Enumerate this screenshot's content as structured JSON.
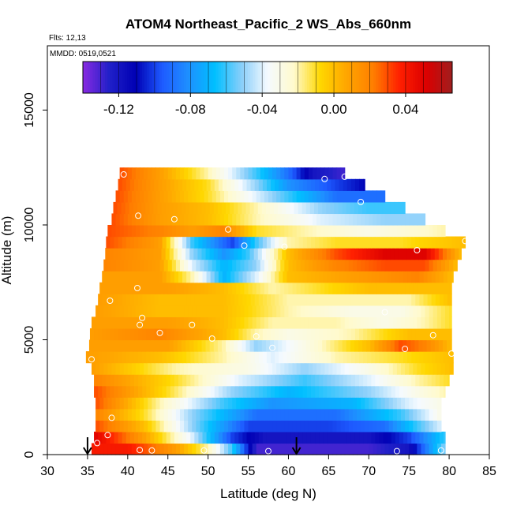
{
  "chart_data": {
    "type": "heatmap",
    "title": "ATOM4 Northeast_Pacific_2 WS_Abs_660nm",
    "flights_label": "Flts: 12,13",
    "dates_label": "MMDD: 0519,0521",
    "xlabel": "Latitude (deg N)",
    "ylabel": "Altitude (m)",
    "xlim": [
      30,
      85
    ],
    "ylim": [
      0,
      17800
    ],
    "x_ticks": [
      30,
      35,
      40,
      45,
      50,
      55,
      60,
      65,
      70,
      75,
      80,
      85
    ],
    "y_ticks": [
      0,
      5000,
      10000,
      15000
    ],
    "colorbar": {
      "range": [
        -0.14,
        0.066
      ],
      "ticks": [
        -0.12,
        -0.08,
        -0.04,
        0.0,
        0.04
      ],
      "tick_labels": [
        "-0.12",
        "-0.08",
        "-0.04",
        "0.00",
        "0.04"
      ],
      "colors": [
        "#8a2be2",
        "#2020c8",
        "#0000b4",
        "#1e5aff",
        "#1e90ff",
        "#00bfff",
        "#87cefa",
        "#f5faff",
        "#fffacd",
        "#ffd700",
        "#ffa500",
        "#ff7f00",
        "#ff2000",
        "#dc0000",
        "#a01e1e"
      ]
    },
    "altitude_bins": [
      {
        "alt": 250,
        "lat_min": 35.5,
        "lat_max": 79.5,
        "values": [
          [
            35.5,
            0.04
          ],
          [
            40,
            0.04
          ],
          [
            46,
            0.01
          ],
          [
            50,
            -0.02
          ],
          [
            53,
            -0.06
          ],
          [
            56,
            -0.13
          ],
          [
            70,
            -0.13
          ],
          [
            75,
            -0.12
          ],
          [
            79.5,
            -0.05
          ]
        ]
      },
      {
        "alt": 750,
        "lat_min": 35.8,
        "lat_max": 79.5,
        "values": [
          [
            35.8,
            0.05
          ],
          [
            42,
            0.01
          ],
          [
            48,
            -0.04
          ],
          [
            53,
            -0.1
          ],
          [
            57,
            -0.12
          ],
          [
            70,
            -0.12
          ],
          [
            75,
            -0.1
          ],
          [
            79.5,
            -0.06
          ]
        ]
      },
      {
        "alt": 1250,
        "lat_min": 36,
        "lat_max": 79,
        "values": [
          [
            36,
            0.03
          ],
          [
            42,
            0.0
          ],
          [
            48,
            -0.05
          ],
          [
            55,
            -0.1
          ],
          [
            65,
            -0.1
          ],
          [
            72,
            -0.09
          ],
          [
            76,
            -0.06
          ],
          [
            79,
            -0.04
          ]
        ]
      },
      {
        "alt": 1750,
        "lat_min": 36,
        "lat_max": 79,
        "values": [
          [
            36,
            0.02
          ],
          [
            42,
            -0.01
          ],
          [
            48,
            -0.05
          ],
          [
            56,
            -0.09
          ],
          [
            66,
            -0.09
          ],
          [
            74,
            -0.06
          ],
          [
            79,
            -0.03
          ]
        ]
      },
      {
        "alt": 2250,
        "lat_min": 36,
        "lat_max": 79,
        "values": [
          [
            36,
            0.03
          ],
          [
            44,
            -0.02
          ],
          [
            52,
            -0.06
          ],
          [
            58,
            -0.08
          ],
          [
            68,
            -0.07
          ],
          [
            75,
            -0.04
          ],
          [
            79,
            -0.03
          ]
        ]
      },
      {
        "alt": 2750,
        "lat_min": 35.8,
        "lat_max": 79.5,
        "values": [
          [
            35.8,
            0.03
          ],
          [
            45,
            -0.01
          ],
          [
            53,
            -0.05
          ],
          [
            60,
            -0.07
          ],
          [
            70,
            -0.05
          ],
          [
            76,
            -0.03
          ],
          [
            79.5,
            -0.02
          ]
        ]
      },
      {
        "alt": 3250,
        "lat_min": 35.8,
        "lat_max": 80,
        "values": [
          [
            35.8,
            0.02
          ],
          [
            46,
            -0.01
          ],
          [
            54,
            -0.04
          ],
          [
            62,
            -0.06
          ],
          [
            70,
            -0.04
          ],
          [
            76,
            -0.02
          ],
          [
            80,
            -0.01
          ]
        ]
      },
      {
        "alt": 3750,
        "lat_min": 35.5,
        "lat_max": 80.5,
        "values": [
          [
            35.5,
            0.01
          ],
          [
            46,
            -0.02
          ],
          [
            55,
            -0.03
          ],
          [
            62,
            -0.05
          ],
          [
            70,
            -0.03
          ],
          [
            76,
            -0.01
          ],
          [
            80.5,
            0.0
          ]
        ]
      },
      {
        "alt": 4250,
        "lat_min": 34.8,
        "lat_max": 80.5,
        "values": [
          [
            34.8,
            0.01
          ],
          [
            44,
            0.0
          ],
          [
            52,
            -0.02
          ],
          [
            58,
            -0.04
          ],
          [
            66,
            -0.02
          ],
          [
            74,
            -0.01
          ],
          [
            80.5,
            0.0
          ]
        ]
      },
      {
        "alt": 4750,
        "lat_min": 35.2,
        "lat_max": 80.3,
        "values": [
          [
            35.2,
            0.01
          ],
          [
            45,
            0.01
          ],
          [
            52,
            -0.02
          ],
          [
            56,
            -0.05
          ],
          [
            62,
            -0.03
          ],
          [
            70,
            0.0
          ],
          [
            74,
            0.03
          ],
          [
            77,
            0.02
          ],
          [
            80.3,
            0.0
          ]
        ]
      },
      {
        "alt": 5250,
        "lat_min": 35.3,
        "lat_max": 80.3,
        "values": [
          [
            35.3,
            0.01
          ],
          [
            44,
            0.02
          ],
          [
            52,
            0.0
          ],
          [
            56,
            -0.02
          ],
          [
            60,
            -0.03
          ],
          [
            68,
            -0.02
          ],
          [
            75,
            0.0
          ],
          [
            80.3,
            0.0
          ]
        ]
      },
      {
        "alt": 5750,
        "lat_min": 35.5,
        "lat_max": 80.3,
        "values": [
          [
            35.5,
            0.01
          ],
          [
            45,
            0.01
          ],
          [
            52,
            0.0
          ],
          [
            58,
            -0.02
          ],
          [
            66,
            -0.02
          ],
          [
            72,
            -0.03
          ],
          [
            77,
            -0.02
          ],
          [
            80.3,
            -0.01
          ]
        ]
      },
      {
        "alt": 6250,
        "lat_min": 36,
        "lat_max": 80.3,
        "values": [
          [
            36,
            0.01
          ],
          [
            44,
            0.0
          ],
          [
            52,
            0.0
          ],
          [
            60,
            -0.02
          ],
          [
            68,
            -0.03
          ],
          [
            74,
            -0.03
          ],
          [
            80.3,
            -0.01
          ]
        ]
      },
      {
        "alt": 6750,
        "lat_min": 36.3,
        "lat_max": 80.3,
        "values": [
          [
            36.3,
            0.01
          ],
          [
            44,
            0.0
          ],
          [
            52,
            0.0
          ],
          [
            60,
            -0.02
          ],
          [
            68,
            -0.02
          ],
          [
            75,
            -0.02
          ],
          [
            80.3,
            0.0
          ]
        ]
      },
      {
        "alt": 7250,
        "lat_min": 36.5,
        "lat_max": 80.3,
        "values": [
          [
            36.5,
            0.01
          ],
          [
            45,
            0.01
          ],
          [
            52,
            0.0
          ],
          [
            58,
            -0.02
          ],
          [
            64,
            -0.01
          ],
          [
            70,
            0.0
          ],
          [
            76,
            0.0
          ],
          [
            80.3,
            0.0
          ]
        ]
      },
      {
        "alt": 7750,
        "lat_min": 36.8,
        "lat_max": 80.5,
        "values": [
          [
            36.8,
            0.01
          ],
          [
            44,
            0.01
          ],
          [
            48,
            -0.02
          ],
          [
            52,
            -0.07
          ],
          [
            56,
            -0.04
          ],
          [
            60,
            0.0
          ],
          [
            68,
            0.01
          ],
          [
            76,
            0.02
          ],
          [
            80.5,
            0.0
          ]
        ]
      },
      {
        "alt": 8250,
        "lat_min": 37,
        "lat_max": 81,
        "values": [
          [
            37,
            0.02
          ],
          [
            44,
            0.01
          ],
          [
            48,
            -0.04
          ],
          [
            52,
            -0.07
          ],
          [
            56,
            -0.05
          ],
          [
            60,
            0.0
          ],
          [
            66,
            0.02
          ],
          [
            72,
            0.03
          ],
          [
            77,
            0.03
          ],
          [
            81,
            0.0
          ]
        ]
      },
      {
        "alt": 8750,
        "lat_min": 37.2,
        "lat_max": 81.5,
        "values": [
          [
            37.2,
            0.02
          ],
          [
            44,
            0.01
          ],
          [
            48,
            -0.05
          ],
          [
            52,
            -0.08
          ],
          [
            55,
            -0.06
          ],
          [
            60,
            0.0
          ],
          [
            66,
            0.03
          ],
          [
            72,
            0.05
          ],
          [
            77,
            0.05
          ],
          [
            81.5,
            0.0
          ]
        ]
      },
      {
        "alt": 9250,
        "lat_min": 37.3,
        "lat_max": 82,
        "values": [
          [
            37.3,
            0.03
          ],
          [
            44,
            0.01
          ],
          [
            48,
            -0.06
          ],
          [
            53,
            -0.1
          ],
          [
            56,
            -0.06
          ],
          [
            60,
            -0.02
          ],
          [
            66,
            -0.01
          ],
          [
            74,
            -0.01
          ],
          [
            82,
            0.0
          ]
        ]
      },
      {
        "alt": 9750,
        "lat_min": 37.5,
        "lat_max": 79.5,
        "values": [
          [
            37.5,
            0.03
          ],
          [
            44,
            0.02
          ],
          [
            48,
            0.01
          ],
          [
            52,
            0.02
          ],
          [
            56,
            -0.01
          ],
          [
            62,
            -0.02
          ],
          [
            70,
            -0.03
          ],
          [
            79.5,
            -0.02
          ]
        ]
      },
      {
        "alt": 10250,
        "lat_min": 38,
        "lat_max": 77,
        "values": [
          [
            38,
            0.03
          ],
          [
            44,
            0.01
          ],
          [
            50,
            0.0
          ],
          [
            56,
            -0.02
          ],
          [
            64,
            -0.04
          ],
          [
            72,
            -0.05
          ],
          [
            77,
            -0.05
          ]
        ]
      },
      {
        "alt": 10750,
        "lat_min": 38.2,
        "lat_max": 74.5,
        "values": [
          [
            38.2,
            0.03
          ],
          [
            44,
            0.01
          ],
          [
            50,
            0.0
          ],
          [
            56,
            -0.02
          ],
          [
            64,
            -0.05
          ],
          [
            70,
            -0.06
          ],
          [
            74.5,
            -0.06
          ]
        ]
      },
      {
        "alt": 11250,
        "lat_min": 38.5,
        "lat_max": 72,
        "values": [
          [
            38.5,
            0.03
          ],
          [
            44,
            0.01
          ],
          [
            50,
            -0.01
          ],
          [
            56,
            -0.04
          ],
          [
            62,
            -0.07
          ],
          [
            66,
            -0.09
          ],
          [
            72,
            -0.09
          ]
        ]
      },
      {
        "alt": 11750,
        "lat_min": 38.8,
        "lat_max": 69.5,
        "values": [
          [
            38.8,
            0.03
          ],
          [
            44,
            0.01
          ],
          [
            50,
            -0.01
          ],
          [
            56,
            -0.05
          ],
          [
            60,
            -0.08
          ],
          [
            66,
            -0.1
          ],
          [
            69.5,
            -0.11
          ]
        ]
      },
      {
        "alt": 12250,
        "lat_min": 39,
        "lat_max": 67,
        "values": [
          [
            39,
            0.03
          ],
          [
            44,
            0.01
          ],
          [
            50,
            -0.02
          ],
          [
            56,
            -0.06
          ],
          [
            60,
            -0.09
          ],
          [
            63,
            -0.12
          ],
          [
            67,
            -0.13
          ]
        ]
      }
    ],
    "sample_points": [
      [
        39.5,
        12200
      ],
      [
        64.5,
        12000
      ],
      [
        67,
        12100
      ],
      [
        69,
        11000
      ],
      [
        41.3,
        10400
      ],
      [
        45.8,
        10250
      ],
      [
        52.5,
        9800
      ],
      [
        54.5,
        9100
      ],
      [
        59.5,
        9050
      ],
      [
        76,
        8900
      ],
      [
        82,
        9300
      ],
      [
        41.2,
        7250
      ],
      [
        37.8,
        6700
      ],
      [
        72,
        6200
      ],
      [
        41.8,
        5950
      ],
      [
        41.5,
        5650
      ],
      [
        48,
        5650
      ],
      [
        44,
        5300
      ],
      [
        50.5,
        5050
      ],
      [
        56,
        5150
      ],
      [
        58,
        4650
      ],
      [
        74.5,
        4600
      ],
      [
        78,
        5200
      ],
      [
        80.3,
        4400
      ],
      [
        35.5,
        4150
      ],
      [
        38,
        1600
      ],
      [
        37.5,
        850
      ],
      [
        36.2,
        500
      ],
      [
        41.5,
        200
      ],
      [
        43,
        180
      ],
      [
        49.5,
        180
      ],
      [
        57.5,
        150
      ],
      [
        73.5,
        150
      ],
      [
        79,
        180
      ]
    ],
    "arrows": [
      35,
      61
    ]
  }
}
